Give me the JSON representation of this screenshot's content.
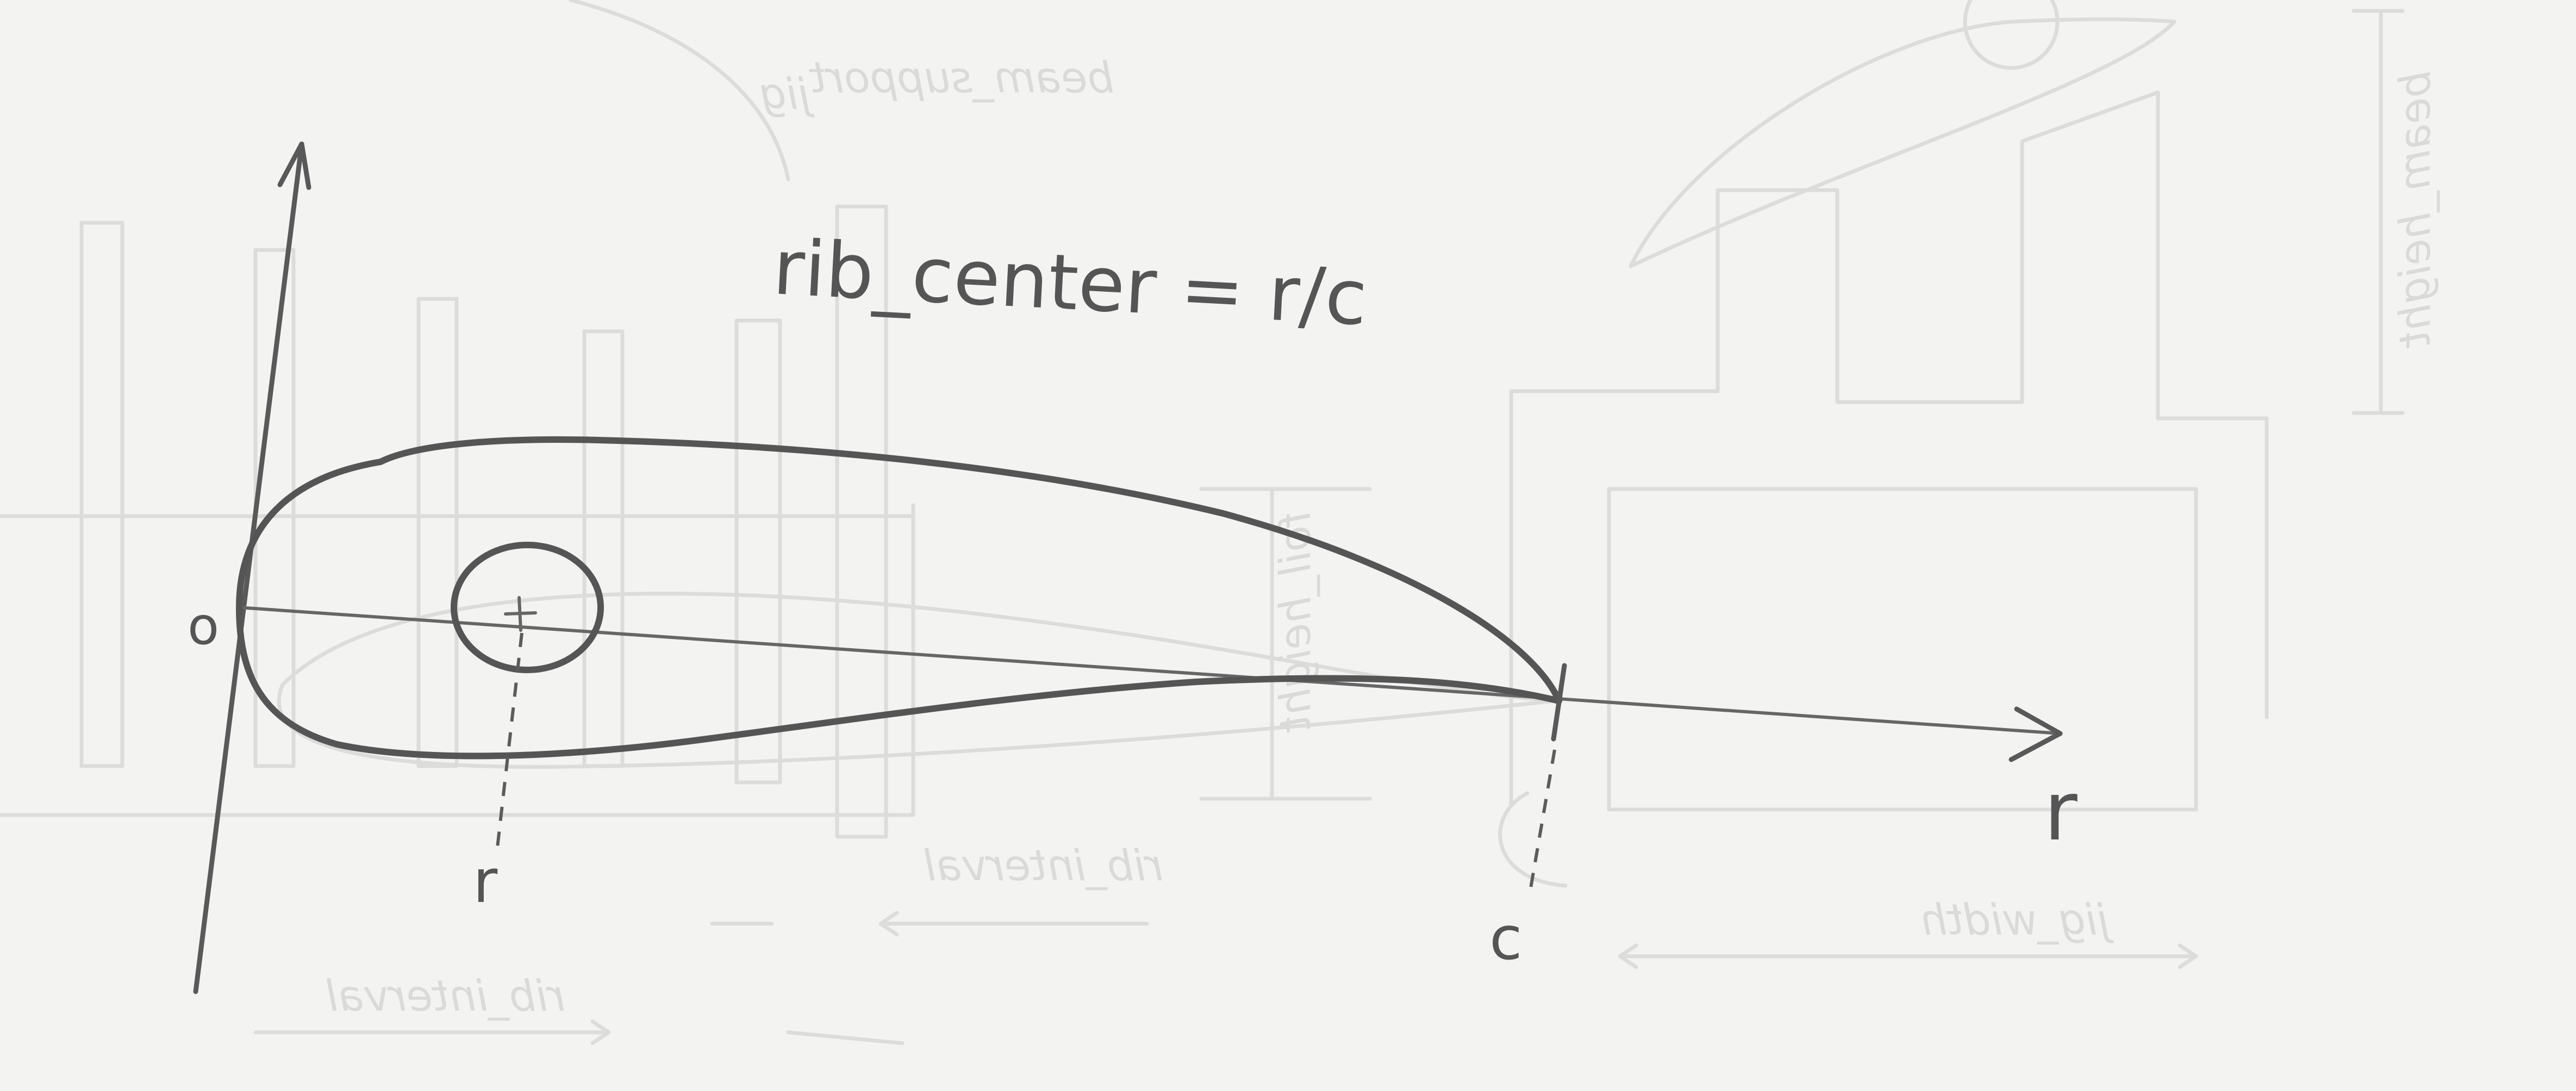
{
  "sketch": {
    "formula": "rib_center = r/c",
    "origin_label": "o",
    "r_marker_label": "r",
    "c_marker_label": "c",
    "axis_label": "r"
  },
  "background_notes": {
    "beam_support": "beam_support",
    "jig": "jig",
    "beam_height": "beam_height",
    "rib_interval_top": "rib_interval",
    "rib_interval_bottom": "rib_interval",
    "jig_width": "jig_width",
    "foil_height": "foil_height"
  }
}
